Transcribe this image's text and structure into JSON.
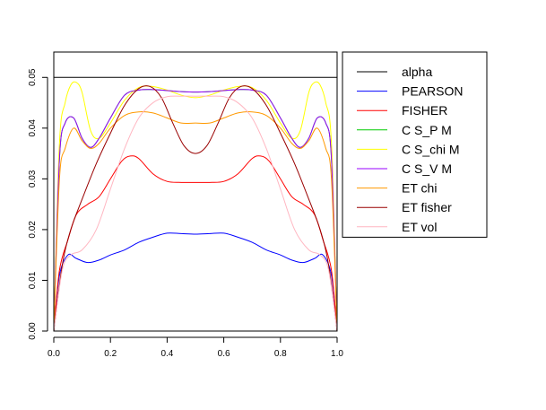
{
  "chart_data": {
    "type": "line",
    "title": "",
    "xlabel": "",
    "ylabel": "",
    "xlim": [
      0,
      1
    ],
    "ylim": [
      0,
      0.055
    ],
    "x_ticks": [
      "0.0",
      "0.2",
      "0.4",
      "0.6",
      "0.8",
      "1.0"
    ],
    "y_ticks": [
      "0.00",
      "0.01",
      "0.02",
      "0.03",
      "0.04",
      "0.05"
    ],
    "grid": false,
    "legend_position": "right",
    "reference_line": {
      "name": "alpha",
      "y": 0.05,
      "color": "#000000"
    },
    "series": [
      {
        "name": "PEARSON",
        "color": "#0000ff",
        "x": [
          0.0,
          0.02,
          0.05,
          0.08,
          0.12,
          0.16,
          0.2,
          0.25,
          0.3,
          0.35,
          0.4,
          0.45,
          0.5,
          0.55,
          0.6,
          0.65,
          0.7,
          0.75,
          0.8,
          0.84,
          0.88,
          0.92,
          0.95,
          0.98,
          1.0
        ],
        "y": [
          0.0,
          0.011,
          0.015,
          0.0143,
          0.0135,
          0.014,
          0.015,
          0.016,
          0.0175,
          0.0185,
          0.0193,
          0.0192,
          0.0191,
          0.0192,
          0.0193,
          0.0185,
          0.0175,
          0.016,
          0.015,
          0.014,
          0.0135,
          0.0143,
          0.015,
          0.011,
          0.0
        ]
      },
      {
        "name": "FISHER",
        "color": "#ff0000",
        "x": [
          0.0,
          0.02,
          0.05,
          0.08,
          0.12,
          0.16,
          0.2,
          0.24,
          0.27,
          0.3,
          0.35,
          0.4,
          0.45,
          0.5,
          0.55,
          0.6,
          0.65,
          0.7,
          0.73,
          0.76,
          0.8,
          0.84,
          0.88,
          0.92,
          0.95,
          0.98,
          1.0
        ],
        "y": [
          0.0,
          0.012,
          0.018,
          0.023,
          0.025,
          0.0265,
          0.03,
          0.0335,
          0.0345,
          0.034,
          0.031,
          0.0295,
          0.0293,
          0.0293,
          0.0293,
          0.0295,
          0.031,
          0.034,
          0.0345,
          0.0335,
          0.03,
          0.0265,
          0.025,
          0.023,
          0.018,
          0.012,
          0.0
        ]
      },
      {
        "name": "C S_P M",
        "color": "#00cc00",
        "x": [
          0.0,
          0.02,
          0.04,
          0.07,
          0.1,
          0.13,
          0.16,
          0.2,
          0.25,
          0.3,
          0.35,
          0.4,
          0.45,
          0.5,
          0.55,
          0.6,
          0.65,
          0.7,
          0.75,
          0.8,
          0.84,
          0.87,
          0.9,
          0.93,
          0.96,
          0.98,
          1.0
        ],
        "y": [
          0.0,
          0.034,
          0.041,
          0.042,
          0.038,
          0.0362,
          0.038,
          0.042,
          0.0465,
          0.0475,
          0.0476,
          0.0474,
          0.0472,
          0.0471,
          0.0472,
          0.0474,
          0.0476,
          0.0475,
          0.0465,
          0.042,
          0.038,
          0.0362,
          0.038,
          0.042,
          0.041,
          0.034,
          0.0
        ]
      },
      {
        "name": "C S_chi M",
        "color": "#ffff00",
        "x": [
          0.0,
          0.02,
          0.04,
          0.06,
          0.08,
          0.1,
          0.13,
          0.16,
          0.2,
          0.25,
          0.3,
          0.35,
          0.4,
          0.45,
          0.5,
          0.55,
          0.6,
          0.65,
          0.7,
          0.75,
          0.8,
          0.84,
          0.87,
          0.9,
          0.92,
          0.94,
          0.96,
          0.98,
          1.0
        ],
        "y": [
          0.0,
          0.037,
          0.045,
          0.0485,
          0.049,
          0.047,
          0.0395,
          0.038,
          0.041,
          0.0455,
          0.048,
          0.0482,
          0.0475,
          0.0465,
          0.046,
          0.0465,
          0.0475,
          0.0482,
          0.048,
          0.0455,
          0.041,
          0.038,
          0.0395,
          0.047,
          0.049,
          0.0485,
          0.045,
          0.037,
          0.0
        ]
      },
      {
        "name": "C S_V M",
        "color": "#9900ff",
        "x": [
          0.0,
          0.02,
          0.04,
          0.07,
          0.1,
          0.13,
          0.16,
          0.2,
          0.25,
          0.3,
          0.35,
          0.4,
          0.45,
          0.5,
          0.55,
          0.6,
          0.65,
          0.7,
          0.75,
          0.8,
          0.84,
          0.87,
          0.9,
          0.93,
          0.96,
          0.98,
          1.0
        ],
        "y": [
          0.0,
          0.034,
          0.041,
          0.042,
          0.038,
          0.0362,
          0.038,
          0.042,
          0.0465,
          0.0475,
          0.0476,
          0.0474,
          0.0472,
          0.0471,
          0.0472,
          0.0474,
          0.0476,
          0.0475,
          0.0465,
          0.042,
          0.038,
          0.0362,
          0.038,
          0.042,
          0.041,
          0.034,
          0.0
        ]
      },
      {
        "name": "ET chi",
        "color": "#ff9900",
        "x": [
          0.0,
          0.02,
          0.04,
          0.07,
          0.1,
          0.13,
          0.16,
          0.2,
          0.25,
          0.3,
          0.35,
          0.4,
          0.45,
          0.5,
          0.55,
          0.6,
          0.65,
          0.7,
          0.75,
          0.8,
          0.84,
          0.87,
          0.9,
          0.93,
          0.96,
          0.98,
          1.0
        ],
        "y": [
          0.0,
          0.03,
          0.036,
          0.04,
          0.0375,
          0.036,
          0.037,
          0.04,
          0.0425,
          0.0432,
          0.043,
          0.042,
          0.041,
          0.041,
          0.041,
          0.042,
          0.043,
          0.0432,
          0.0425,
          0.04,
          0.037,
          0.036,
          0.0375,
          0.04,
          0.036,
          0.03,
          0.0
        ]
      },
      {
        "name": "ET fisher",
        "color": "#990000",
        "x": [
          0.0,
          0.03,
          0.06,
          0.1,
          0.15,
          0.2,
          0.25,
          0.3,
          0.34,
          0.38,
          0.42,
          0.46,
          0.5,
          0.54,
          0.58,
          0.62,
          0.66,
          0.7,
          0.75,
          0.8,
          0.85,
          0.9,
          0.94,
          0.97,
          1.0
        ],
        "y": [
          0.0,
          0.013,
          0.02,
          0.026,
          0.033,
          0.039,
          0.0445,
          0.0478,
          0.0482,
          0.046,
          0.041,
          0.0365,
          0.035,
          0.0365,
          0.041,
          0.046,
          0.0482,
          0.0478,
          0.0445,
          0.039,
          0.033,
          0.026,
          0.02,
          0.013,
          0.0
        ]
      },
      {
        "name": "ET vol",
        "color": "#ffb6c1",
        "x": [
          0.0,
          0.03,
          0.06,
          0.1,
          0.15,
          0.2,
          0.25,
          0.3,
          0.35,
          0.4,
          0.45,
          0.5,
          0.55,
          0.6,
          0.65,
          0.7,
          0.75,
          0.8,
          0.85,
          0.9,
          0.94,
          0.97,
          1.0
        ],
        "y": [
          0.0,
          0.012,
          0.015,
          0.016,
          0.02,
          0.028,
          0.036,
          0.042,
          0.045,
          0.0462,
          0.0463,
          0.0463,
          0.0463,
          0.0462,
          0.045,
          0.042,
          0.036,
          0.028,
          0.02,
          0.016,
          0.015,
          0.012,
          0.0
        ]
      }
    ]
  }
}
